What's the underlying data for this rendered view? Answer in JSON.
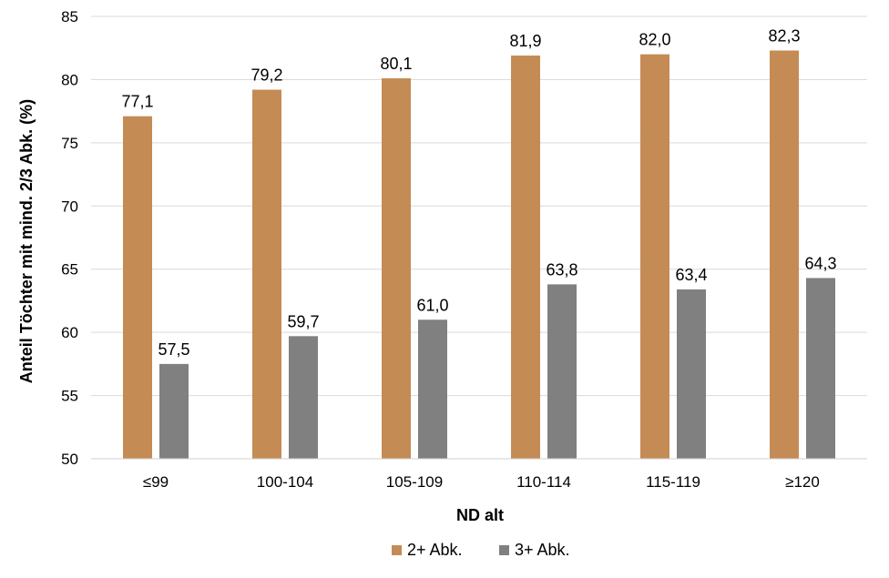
{
  "chart_data": {
    "type": "bar",
    "title": "",
    "xlabel": "ND alt",
    "ylabel": "Anteil Töchter mit mind. 2/3 Abk. (%)",
    "categories": [
      "≤99",
      "100-104",
      "105-109",
      "110-114",
      "115-119",
      "≥120"
    ],
    "series": [
      {
        "name": "2+ Abk.",
        "color": "#C48B55",
        "values": [
          77.1,
          79.2,
          80.1,
          81.9,
          82.0,
          82.3
        ],
        "labels": [
          "77,1",
          "79,2",
          "80,1",
          "81,9",
          "82,0",
          "82,3"
        ]
      },
      {
        "name": "3+ Abk.",
        "color": "#808080",
        "values": [
          57.5,
          59.7,
          61.0,
          63.8,
          63.4,
          64.3
        ],
        "labels": [
          "57,5",
          "59,7",
          "61,0",
          "63,8",
          "63,4",
          "64,3"
        ]
      }
    ],
    "ylim": [
      50,
      85
    ],
    "yticks": [
      50,
      55,
      60,
      65,
      70,
      75,
      80,
      85
    ],
    "grid": true,
    "legend": "bottom"
  }
}
